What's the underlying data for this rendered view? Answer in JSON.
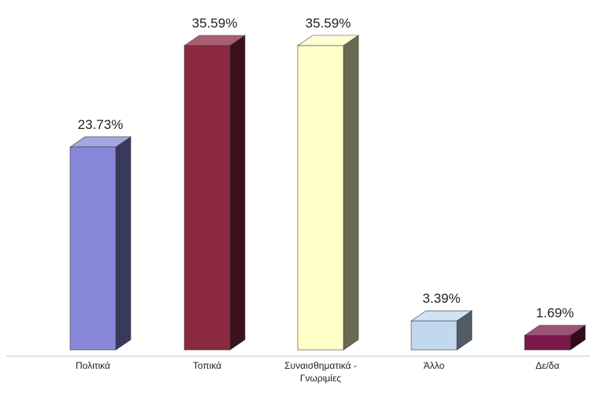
{
  "chart_data": {
    "type": "bar",
    "categories": [
      "Πολιτικά",
      "Τοπικά",
      "Συναισθηματικά -\nΓνωριμίες",
      "Άλλο",
      "Δε/δα"
    ],
    "values": [
      23.73,
      35.59,
      35.59,
      3.39,
      1.69
    ],
    "value_labels": [
      "23.73%",
      "35.59%",
      "35.59%",
      "3.39%",
      "1.69%"
    ],
    "bar_colors": [
      "#8888D8",
      "#8C2A42",
      "#FFFFC8",
      "#C2D8EE",
      "#7A1A4A"
    ],
    "ylim": [
      0,
      35.59
    ],
    "grid": false,
    "legend": "none",
    "style": "3d-bars"
  }
}
